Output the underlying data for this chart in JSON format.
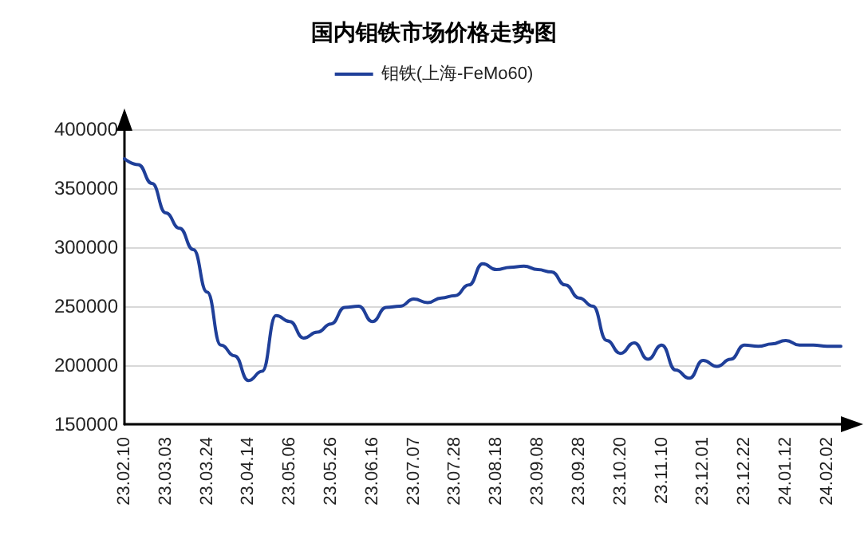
{
  "chart_data": {
    "type": "line",
    "title": "国内钼铁市场价格走势图",
    "categories": [
      "23.02.10",
      null,
      null,
      "23.03.03",
      null,
      null,
      "23.03.24",
      null,
      null,
      "23.04.14",
      null,
      null,
      "23.05.06",
      null,
      null,
      "23.05.26",
      null,
      null,
      "23.06.16",
      null,
      null,
      "23.07.07",
      null,
      null,
      "23.07.28",
      null,
      null,
      "23.08.18",
      null,
      null,
      "23.09.08",
      null,
      null,
      "23.09.28",
      null,
      null,
      "23.10.20",
      null,
      null,
      "23.11.10",
      null,
      null,
      "23.12.01",
      null,
      null,
      "23.12.22",
      null,
      null,
      "24.01.12",
      null,
      null,
      "24.02.02",
      null
    ],
    "series": [
      {
        "name": "钼铁(上海-FeMo60)",
        "color": "#1f3f99",
        "values": [
          375000,
          370000,
          354000,
          329000,
          316000,
          298000,
          262000,
          217000,
          208000,
          187000,
          195000,
          242000,
          237000,
          223000,
          228000,
          235000,
          249000,
          250000,
          237000,
          249000,
          250000,
          256000,
          253000,
          257000,
          259000,
          268000,
          286000,
          281000,
          283000,
          284000,
          281000,
          279000,
          268000,
          257000,
          250000,
          221000,
          210000,
          219000,
          205000,
          217000,
          196000,
          189000,
          204000,
          199000,
          205000,
          217000,
          216000,
          218000,
          221000,
          217000,
          217000,
          216000,
          216000
        ]
      }
    ],
    "ylim": [
      150000,
      400000
    ],
    "yticks": [
      150000,
      200000,
      250000,
      300000,
      350000,
      400000
    ],
    "grid": "y",
    "legend": "top",
    "marker": "none",
    "line_style": "solid"
  }
}
